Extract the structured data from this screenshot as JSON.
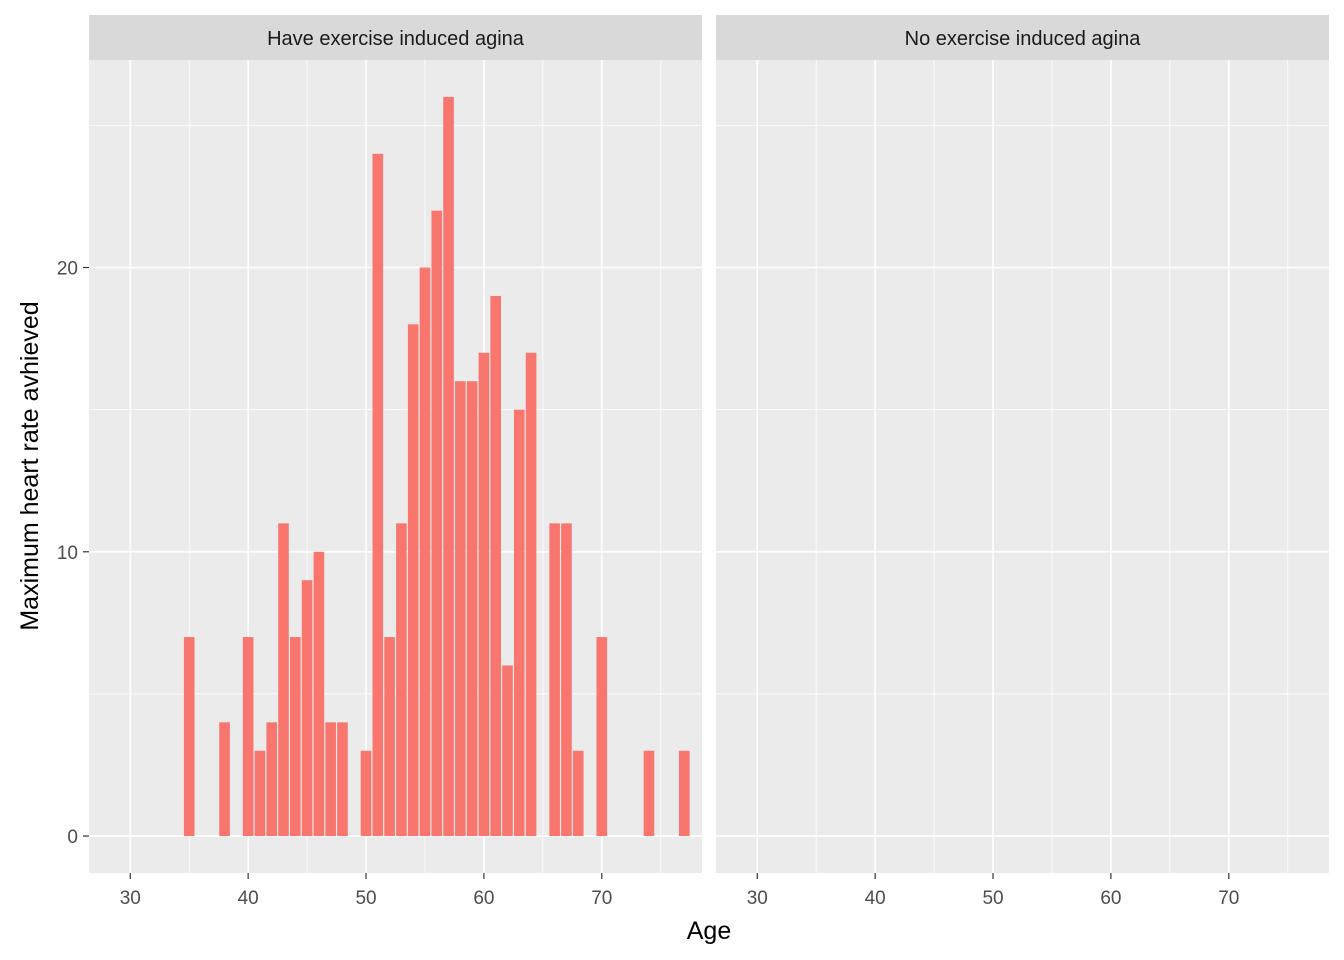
{
  "chart_data": {
    "type": "bar",
    "xlabel": "Age",
    "ylabel": "Maximum heart rate avhieved",
    "xlim": [
      26.5,
      78.5
    ],
    "ylim": [
      -1.3,
      27.3
    ],
    "x_ticks": [
      30,
      40,
      50,
      60,
      70
    ],
    "x_tick_labels": [
      "30",
      "40",
      "50",
      "60",
      "70"
    ],
    "y_ticks": [
      0,
      10,
      20
    ],
    "y_tick_labels": [
      "0",
      "10",
      "20"
    ],
    "bar_color": "#f8766d",
    "panels": [
      {
        "label": "Have exercise induced agina",
        "bars": [
          {
            "x": 35,
            "y": 7
          },
          {
            "x": 38,
            "y": 4
          },
          {
            "x": 40,
            "y": 7
          },
          {
            "x": 41,
            "y": 3
          },
          {
            "x": 42,
            "y": 4
          },
          {
            "x": 43,
            "y": 11
          },
          {
            "x": 44,
            "y": 7
          },
          {
            "x": 45,
            "y": 9
          },
          {
            "x": 46,
            "y": 10
          },
          {
            "x": 47,
            "y": 4
          },
          {
            "x": 48,
            "y": 4
          },
          {
            "x": 50,
            "y": 3
          },
          {
            "x": 51,
            "y": 24
          },
          {
            "x": 52,
            "y": 7
          },
          {
            "x": 53,
            "y": 11
          },
          {
            "x": 54,
            "y": 18
          },
          {
            "x": 55,
            "y": 20
          },
          {
            "x": 56,
            "y": 22
          },
          {
            "x": 57,
            "y": 26
          },
          {
            "x": 58,
            "y": 16
          },
          {
            "x": 59,
            "y": 16
          },
          {
            "x": 60,
            "y": 17
          },
          {
            "x": 61,
            "y": 19
          },
          {
            "x": 62,
            "y": 6
          },
          {
            "x": 63,
            "y": 15
          },
          {
            "x": 64,
            "y": 17
          },
          {
            "x": 66,
            "y": 11
          },
          {
            "x": 67,
            "y": 11
          },
          {
            "x": 68,
            "y": 3
          },
          {
            "x": 70,
            "y": 7
          },
          {
            "x": 74,
            "y": 3
          },
          {
            "x": 77,
            "y": 3
          }
        ]
      },
      {
        "label": "No exercise induced agina",
        "bars": []
      }
    ]
  }
}
